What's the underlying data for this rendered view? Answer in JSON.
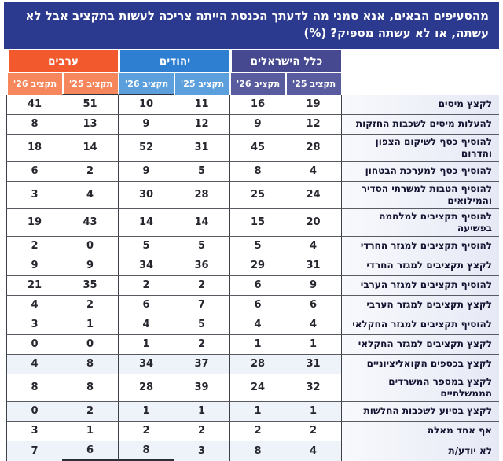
{
  "chart_data": {
    "type": "table",
    "title": "מהסעיפים הבאים, אנא סמני מה לדעתך הכנסת הייתה צריכה לעשות בתקציב אבל לא\nעשתה, או לא עשתה מספיק?  (%)",
    "direction": "rtl",
    "colors": {
      "title_bg": "#2b3a8f",
      "all_israelis_header": "#46498f",
      "all_israelis_subheader": "#585b9e",
      "jews_header": "#2e7fd2",
      "jews_subheader": "#5c9fdd",
      "arabs_header": "#f2592c",
      "arabs_subheader": "#f6865c",
      "label_column_bg": "#e6e9f5",
      "row_tint": "#eef2f9",
      "grid_line": "#595b63"
    },
    "column_groups": [
      {
        "label": "כלל הישראלים",
        "color": "#46498f",
        "subcolor": "#585b9e",
        "columns": [
          "תקציב 25'",
          "תקציב 26'"
        ]
      },
      {
        "label": "יהודים",
        "color": "#2e7fd2",
        "subcolor": "#5c9fdd",
        "columns": [
          "תקציב 25'",
          "תקציב 26'"
        ]
      },
      {
        "label": "ערבים",
        "color": "#f2592c",
        "subcolor": "#f6865c",
        "columns": [
          "תקציב 25'",
          "תקציב 26'"
        ]
      }
    ],
    "value_columns": [
      "all_25",
      "all_26",
      "jews_25",
      "jews_26",
      "arabs_25",
      "arabs_26"
    ],
    "rows": [
      {
        "label": "לקצץ מיסים",
        "values": [
          19,
          16,
          11,
          10,
          51,
          41
        ]
      },
      {
        "label": "להעלות מיסים לשכבות החזקות",
        "values": [
          12,
          9,
          12,
          9,
          13,
          8
        ]
      },
      {
        "label": "להוסיף כסף לשיקום הצפון והדרום",
        "values": [
          28,
          45,
          31,
          52,
          14,
          18
        ]
      },
      {
        "label": "להוסיף כסף למערכת הבטחון",
        "values": [
          4,
          8,
          5,
          9,
          2,
          6
        ]
      },
      {
        "label": "להוסיף הטבות למשרתי הסדיר\nוהמילואים",
        "values": [
          24,
          25,
          28,
          30,
          4,
          3
        ]
      },
      {
        "label": "להוסיף תקציבים למלחמה בפשיעה",
        "values": [
          20,
          15,
          14,
          14,
          43,
          19
        ]
      },
      {
        "label": "להוסיף תקציבים למגזר החרדי",
        "values": [
          4,
          5,
          5,
          5,
          0,
          2
        ]
      },
      {
        "label": "לקצץ תקציבים למגזר החרדי",
        "values": [
          31,
          29,
          36,
          34,
          9,
          9
        ]
      },
      {
        "label": "להוסיף תקציבים למגזר הערבי",
        "values": [
          9,
          6,
          2,
          2,
          35,
          21
        ]
      },
      {
        "label": "לקצץ תקציבים למגזר הערבי",
        "values": [
          6,
          6,
          7,
          6,
          2,
          4
        ]
      },
      {
        "label": "להוסיף תקציבים למגזר החקלאי",
        "values": [
          4,
          4,
          5,
          4,
          1,
          3
        ]
      },
      {
        "label": "לקצץ תקציבים למגזר החקלאי",
        "values": [
          1,
          1,
          2,
          1,
          0,
          0
        ]
      },
      {
        "label": "לקצץ בכספים הקואליציוניים",
        "values": [
          31,
          28,
          37,
          34,
          8,
          4
        ]
      },
      {
        "label": "לקצץ במספר המשרדים\nהממשלתיים",
        "values": [
          32,
          24,
          39,
          28,
          8,
          8
        ]
      },
      {
        "label": "לקצץ בסיוע לשכבות החלשות",
        "values": [
          1,
          1,
          1,
          1,
          2,
          0
        ]
      },
      {
        "label": "אף אחד מאלה",
        "values": [
          2,
          2,
          2,
          2,
          1,
          3
        ]
      },
      {
        "label": "לא יודע/ת",
        "values": [
          4,
          8,
          3,
          8,
          6,
          7
        ]
      }
    ]
  }
}
